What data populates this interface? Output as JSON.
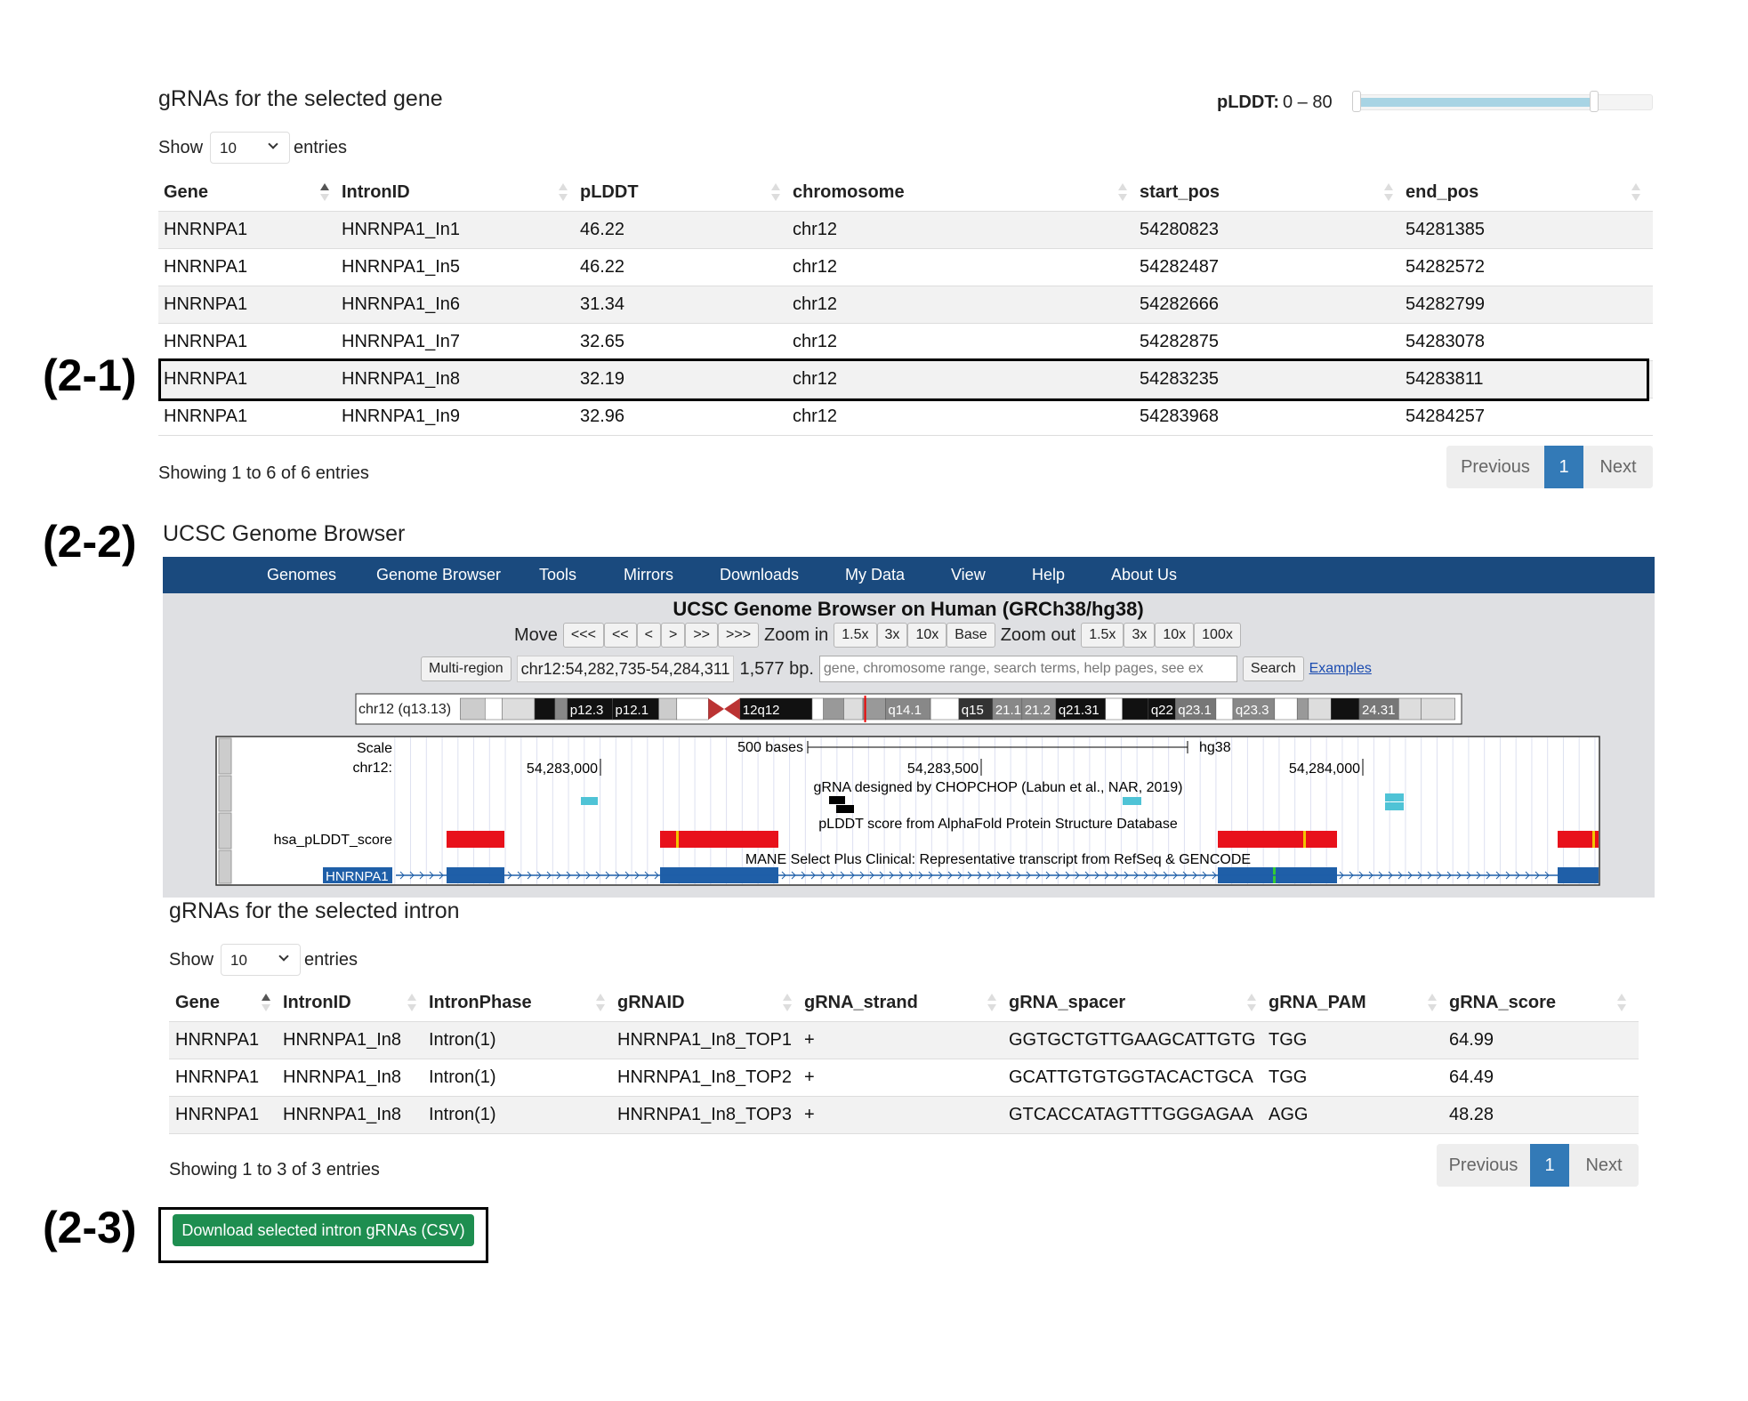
{
  "annotations": [
    "(2-1)",
    "(2-2)",
    "(2-3)"
  ],
  "gene_table": {
    "title": "gRNAs for the selected gene",
    "slider_label": "pLDDT:",
    "slider_range": "0 – 80",
    "show": "Show",
    "length": "10",
    "entries": "entries",
    "columns": [
      "Gene",
      "IntronID",
      "pLDDT",
      "chromosome",
      "start_pos",
      "end_pos"
    ],
    "rows": [
      [
        "HNRNPA1",
        "HNRNPA1_In1",
        "46.22",
        "chr12",
        "54280823",
        "54281385"
      ],
      [
        "HNRNPA1",
        "HNRNPA1_In5",
        "46.22",
        "chr12",
        "54282487",
        "54282572"
      ],
      [
        "HNRNPA1",
        "HNRNPA1_In6",
        "31.34",
        "chr12",
        "54282666",
        "54282799"
      ],
      [
        "HNRNPA1",
        "HNRNPA1_In7",
        "32.65",
        "chr12",
        "54282875",
        "54283078"
      ],
      [
        "HNRNPA1",
        "HNRNPA1_In8",
        "32.19",
        "chr12",
        "54283235",
        "54283811"
      ],
      [
        "HNRNPA1",
        "HNRNPA1_In9",
        "32.96",
        "chr12",
        "54283968",
        "54284257"
      ]
    ],
    "info": "Showing 1 to 6 of 6 entries",
    "pagination": [
      "Previous",
      "1",
      "Next"
    ]
  },
  "browser": {
    "title": "UCSC Genome Browser",
    "nav": [
      "Genomes",
      "Genome Browser",
      "Tools",
      "Mirrors",
      "Downloads",
      "My Data",
      "View",
      "Help",
      "About Us"
    ],
    "heading": "UCSC Genome Browser on Human (GRCh38/hg38)",
    "move": "Move",
    "move_buttons": [
      "<<<",
      "<<",
      "<",
      ">",
      ">>",
      ">>>"
    ],
    "zoom_in": "Zoom in",
    "zoom_in_buttons": [
      "1.5x",
      "3x",
      "10x",
      "Base"
    ],
    "zoom_out": "Zoom out",
    "zoom_out_buttons": [
      "1.5x",
      "3x",
      "10x",
      "100x"
    ],
    "multi_region": "Multi-region",
    "position": "chr12:54,282,735-54,284,311",
    "size": "1,577 bp.",
    "search_placeholder": "gene, chromosome range, search terms, help pages, see ex",
    "search": "Search",
    "examples": "Examples",
    "ideogram": {
      "label": "chr12 (q13.13)",
      "bands": [
        "p12.3",
        "p12.1",
        "12q12",
        "q14.1",
        "q15",
        "21.1",
        "21.2",
        "q21.31",
        "q22",
        "q23.1",
        "q23.3",
        "24.31"
      ]
    },
    "track": {
      "scale": "Scale",
      "chrom": "chr12:",
      "scale_bar": "500 bases",
      "assembly": "hg38",
      "positions": [
        "54,283,000",
        "54,283,500",
        "54,284,000"
      ],
      "grna_track": "gRNA designed by CHOPCHOP (Labun et al., NAR, 2019)",
      "plddt_track": "pLDDT score from AlphaFold Protein Structure Database",
      "plddt_label": "hsa_pLDDT_score",
      "mane_track": "MANE Select Plus Clinical: Representative transcript from RefSeq & GENCODE",
      "gene_label": "HNRNPA1"
    }
  },
  "intron_table": {
    "title": "gRNAs for the selected intron",
    "show": "Show",
    "length": "10",
    "entries": "entries",
    "columns": [
      "Gene",
      "IntronID",
      "IntronPhase",
      "gRNAID",
      "gRNA_strand",
      "gRNA_spacer",
      "gRNA_PAM",
      "gRNA_score"
    ],
    "rows": [
      [
        "HNRNPA1",
        "HNRNPA1_In8",
        "Intron(1)",
        "HNRNPA1_In8_TOP1",
        "+",
        "GGTGCTGTTGAAGCATTGTG",
        "TGG",
        "64.99"
      ],
      [
        "HNRNPA1",
        "HNRNPA1_In8",
        "Intron(1)",
        "HNRNPA1_In8_TOP2",
        "+",
        "GCATTGTGTGGTACACTGCA",
        "TGG",
        "64.49"
      ],
      [
        "HNRNPA1",
        "HNRNPA1_In8",
        "Intron(1)",
        "HNRNPA1_In8_TOP3",
        "+",
        "GTCACCATAGTTTGGGAGAA",
        "AGG",
        "48.28"
      ]
    ],
    "info": "Showing 1 to 3 of 3 entries",
    "pagination": [
      "Previous",
      "1",
      "Next"
    ],
    "download": "Download selected intron gRNAs (CSV)"
  }
}
